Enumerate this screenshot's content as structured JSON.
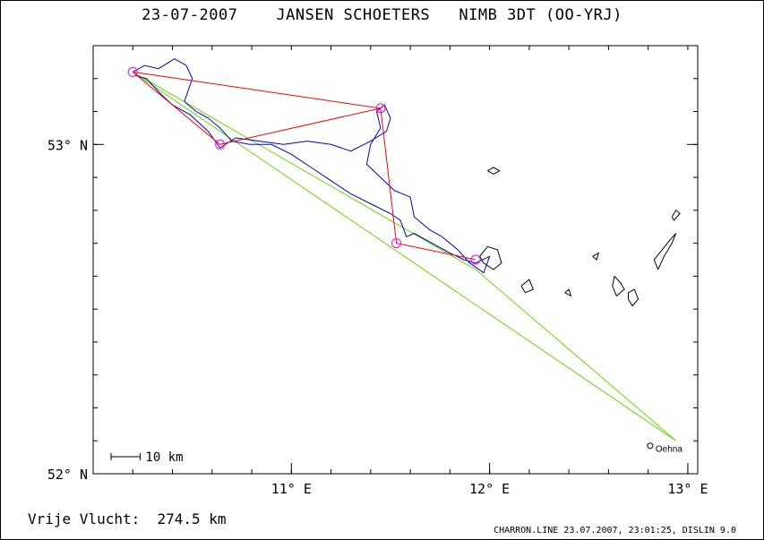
{
  "header": {
    "date": "23-07-2007",
    "pilot": "JANSEN SCHOETERS",
    "glider": "NIMB 3DT (OO-YRJ)"
  },
  "footer": {
    "distance_label": "Vrije Vlucht:",
    "distance_value": "274.5 km",
    "credit": "CHARRON.LINE 23.07.2007, 23:01:25, DISLIN 9.0"
  },
  "colors": {
    "track": "#0000cc",
    "task": "#ff0000",
    "declared": "#66dd00",
    "turnpoint": "#ff00ff",
    "coast": "#000000"
  },
  "chart_data": {
    "type": "line",
    "xlim": [
      10.0,
      13.05
    ],
    "ylim": [
      52.0,
      53.3
    ],
    "x_ticks": [
      {
        "value": 11,
        "label": "11° E"
      },
      {
        "value": 12,
        "label": "12° E"
      },
      {
        "value": 13,
        "label": "13° E"
      }
    ],
    "y_ticks": [
      {
        "value": 52,
        "label": "52° N"
      },
      {
        "value": 53,
        "label": "53° N"
      }
    ],
    "scale_bar": {
      "label": "10 km",
      "km": 10
    },
    "place": {
      "name": "Oehna",
      "lon": 12.81,
      "lat": 52.085
    },
    "declared_task": [
      [
        12.94,
        52.1
      ],
      [
        10.2,
        53.22
      ],
      [
        11.93,
        52.62
      ],
      [
        12.94,
        52.1
      ]
    ],
    "flown_task": [
      [
        10.2,
        53.22
      ],
      [
        11.45,
        53.11
      ],
      [
        11.53,
        52.7
      ],
      [
        11.93,
        52.65
      ],
      [
        11.53,
        52.7
      ],
      [
        11.45,
        53.11
      ],
      [
        10.64,
        53.0
      ],
      [
        10.2,
        53.22
      ]
    ],
    "turnpoints": [
      [
        10.2,
        53.22
      ],
      [
        10.64,
        53.0
      ],
      [
        11.45,
        53.11
      ],
      [
        11.53,
        52.7
      ],
      [
        11.93,
        52.65
      ]
    ],
    "track": [
      [
        10.2,
        53.22
      ],
      [
        10.26,
        53.24
      ],
      [
        10.33,
        53.23
      ],
      [
        10.41,
        53.26
      ],
      [
        10.47,
        53.24
      ],
      [
        10.5,
        53.2
      ],
      [
        10.46,
        53.13
      ],
      [
        10.52,
        53.1
      ],
      [
        10.58,
        53.08
      ],
      [
        10.64,
        53.05
      ],
      [
        10.7,
        53.01
      ],
      [
        10.79,
        53.0
      ],
      [
        10.9,
        53.0
      ],
      [
        11.0,
        52.97
      ],
      [
        11.1,
        52.93
      ],
      [
        11.2,
        52.89
      ],
      [
        11.3,
        52.85
      ],
      [
        11.4,
        52.82
      ],
      [
        11.5,
        52.79
      ],
      [
        11.55,
        52.77
      ],
      [
        11.58,
        52.72
      ],
      [
        11.62,
        52.73
      ],
      [
        11.68,
        52.71
      ],
      [
        11.74,
        52.69
      ],
      [
        11.8,
        52.67
      ],
      [
        11.87,
        52.65
      ],
      [
        11.93,
        52.64
      ],
      [
        12.0,
        52.66
      ],
      [
        11.97,
        52.61
      ],
      [
        11.9,
        52.64
      ],
      [
        11.84,
        52.68
      ],
      [
        11.76,
        52.72
      ],
      [
        11.7,
        52.74
      ],
      [
        11.62,
        52.78
      ],
      [
        11.6,
        52.84
      ],
      [
        11.52,
        52.86
      ],
      [
        11.45,
        52.9
      ],
      [
        11.38,
        52.94
      ],
      [
        11.4,
        53.0
      ],
      [
        11.45,
        53.05
      ],
      [
        11.43,
        53.1
      ],
      [
        11.47,
        53.12
      ],
      [
        11.5,
        53.08
      ],
      [
        11.48,
        53.04
      ],
      [
        11.4,
        53.01
      ],
      [
        11.3,
        52.98
      ],
      [
        11.2,
        53.0
      ],
      [
        11.08,
        53.01
      ],
      [
        10.96,
        53.0
      ],
      [
        10.84,
        53.01
      ],
      [
        10.72,
        53.02
      ],
      [
        10.64,
        52.99
      ],
      [
        10.58,
        53.04
      ],
      [
        10.49,
        53.09
      ],
      [
        10.4,
        53.12
      ],
      [
        10.33,
        53.16
      ],
      [
        10.27,
        53.2
      ],
      [
        10.21,
        53.21
      ]
    ],
    "coast": [
      [
        [
          11.95,
          52.66
        ],
        [
          11.99,
          52.69
        ],
        [
          12.04,
          52.68
        ],
        [
          12.06,
          52.64
        ],
        [
          12.02,
          52.62
        ],
        [
          11.97,
          52.64
        ],
        [
          11.95,
          52.66
        ]
      ],
      [
        [
          11.99,
          52.92
        ],
        [
          12.02,
          52.93
        ],
        [
          12.05,
          52.92
        ],
        [
          12.02,
          52.91
        ],
        [
          11.99,
          52.92
        ]
      ],
      [
        [
          12.16,
          52.57
        ],
        [
          12.2,
          52.59
        ],
        [
          12.22,
          52.56
        ],
        [
          12.18,
          52.55
        ],
        [
          12.16,
          52.57
        ]
      ],
      [
        [
          12.38,
          52.55
        ],
        [
          12.4,
          52.56
        ],
        [
          12.41,
          52.54
        ],
        [
          12.38,
          52.55
        ]
      ],
      [
        [
          12.52,
          52.66
        ],
        [
          12.55,
          52.67
        ],
        [
          12.54,
          52.65
        ],
        [
          12.52,
          52.66
        ]
      ],
      [
        [
          12.63,
          52.6
        ],
        [
          12.66,
          52.58
        ],
        [
          12.68,
          52.56
        ],
        [
          12.64,
          52.54
        ],
        [
          12.62,
          52.57
        ],
        [
          12.63,
          52.6
        ]
      ],
      [
        [
          12.7,
          52.55
        ],
        [
          12.73,
          52.56
        ],
        [
          12.75,
          52.53
        ],
        [
          12.72,
          52.51
        ],
        [
          12.7,
          52.53
        ],
        [
          12.7,
          52.55
        ]
      ],
      [
        [
          12.85,
          52.62
        ],
        [
          12.88,
          52.66
        ],
        [
          12.92,
          52.7
        ],
        [
          12.94,
          52.73
        ],
        [
          12.91,
          52.71
        ],
        [
          12.87,
          52.68
        ],
        [
          12.83,
          52.65
        ],
        [
          12.85,
          52.62
        ]
      ],
      [
        [
          12.92,
          52.78
        ],
        [
          12.94,
          52.8
        ],
        [
          12.96,
          52.79
        ],
        [
          12.93,
          52.77
        ],
        [
          12.92,
          52.78
        ]
      ]
    ]
  }
}
